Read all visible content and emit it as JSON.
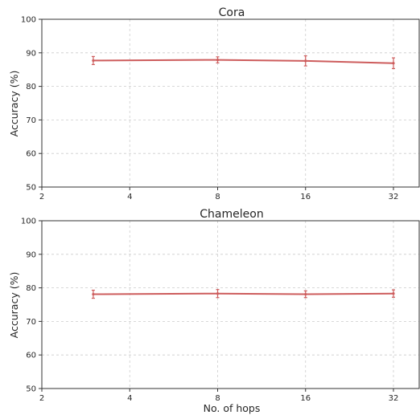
{
  "chart_data": [
    {
      "type": "line",
      "title": "Cora",
      "xlabel": "",
      "ylabel": "Accuracy (%)",
      "x_tick_labels": [
        "2",
        "4",
        "8",
        "16",
        "32"
      ],
      "y_tick_labels": [
        "50",
        "60",
        "70",
        "80",
        "90",
        "100"
      ],
      "ylim": [
        50,
        100
      ],
      "grid": true,
      "color": "#cd5c5c",
      "series": [
        {
          "x": [
            3,
            8,
            16,
            32
          ],
          "values": [
            87.7,
            87.9,
            87.6,
            86.9
          ],
          "errors": [
            1.2,
            0.9,
            1.5,
            1.6
          ]
        }
      ]
    },
    {
      "type": "line",
      "title": "Chameleon",
      "xlabel": "No. of hops",
      "ylabel": "Accuracy (%)",
      "x_tick_labels": [
        "2",
        "4",
        "8",
        "16",
        "32"
      ],
      "y_tick_labels": [
        "50",
        "60",
        "70",
        "80",
        "90",
        "100"
      ],
      "ylim": [
        50,
        100
      ],
      "grid": true,
      "color": "#cd5c5c",
      "series": [
        {
          "x": [
            3,
            8,
            16,
            32
          ],
          "values": [
            78.1,
            78.3,
            78.1,
            78.3
          ],
          "errors": [
            1.2,
            1.2,
            1.0,
            1.1
          ]
        }
      ]
    }
  ]
}
